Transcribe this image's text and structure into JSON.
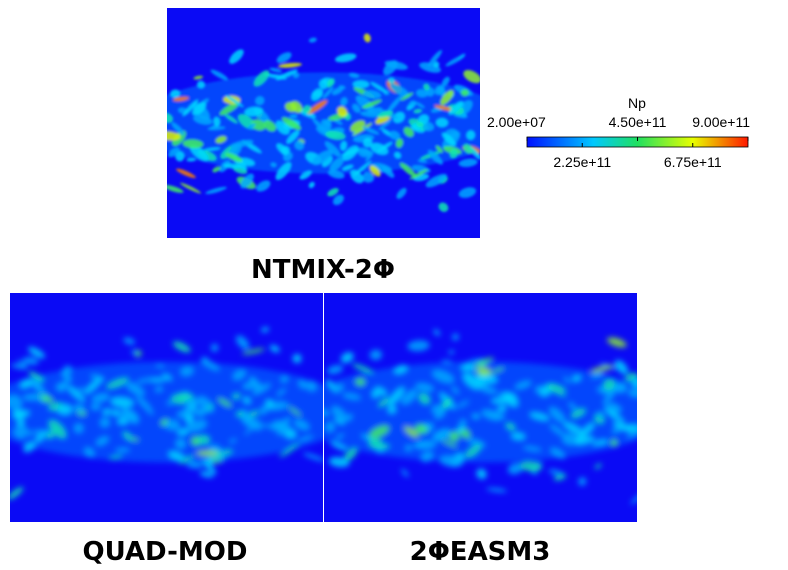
{
  "panels": [
    {
      "label": "NTMIX-2Φ"
    },
    {
      "label": "QUAD-MOD"
    },
    {
      "label": "2ΦEASM3"
    }
  ],
  "colorbar": {
    "title": "Np",
    "range": [
      20000000,
      900000000000
    ],
    "ticks": [
      {
        "value": 20000000,
        "label": "2.00e+07"
      },
      {
        "value": 225000000000,
        "label": "2.25e+11"
      },
      {
        "value": 450000000000,
        "label": "4.50e+11"
      },
      {
        "value": 675000000000,
        "label": "6.75e+11"
      },
      {
        "value": 900000000000,
        "label": "9.00e+11"
      }
    ]
  }
}
